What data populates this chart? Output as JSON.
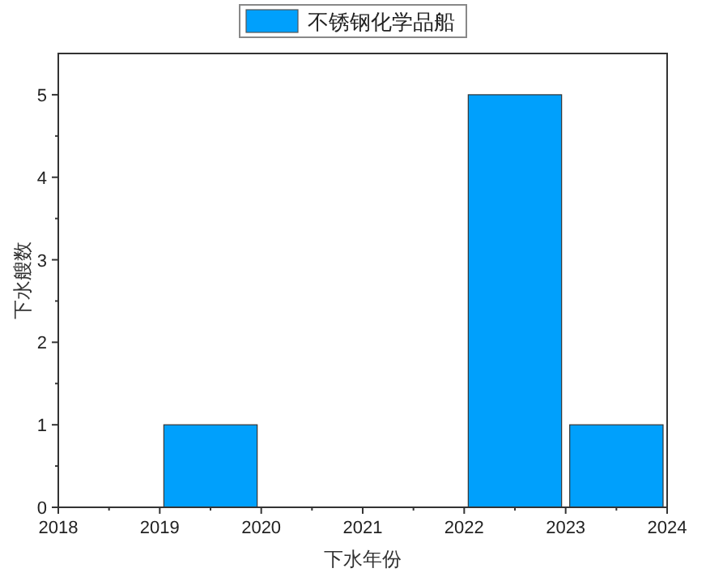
{
  "chart_data": {
    "type": "histogram",
    "xlabel": "下水年份",
    "ylabel": "下水艘数",
    "series": [
      {
        "name": "不锈钢化学品船",
        "color": "#00a0fc",
        "values": [
          0,
          1,
          0,
          0,
          5,
          1
        ]
      }
    ],
    "bins": [
      2018,
      2019,
      2020,
      2021,
      2022,
      2023,
      2024
    ],
    "xlim": [
      2018,
      2024
    ],
    "xticks": [
      2018,
      2019,
      2020,
      2021,
      2022,
      2023,
      2024
    ],
    "ylim": [
      0,
      5.5
    ],
    "yticks": [
      0,
      1,
      2,
      3,
      4,
      5
    ],
    "grid": false,
    "legend": "top"
  }
}
